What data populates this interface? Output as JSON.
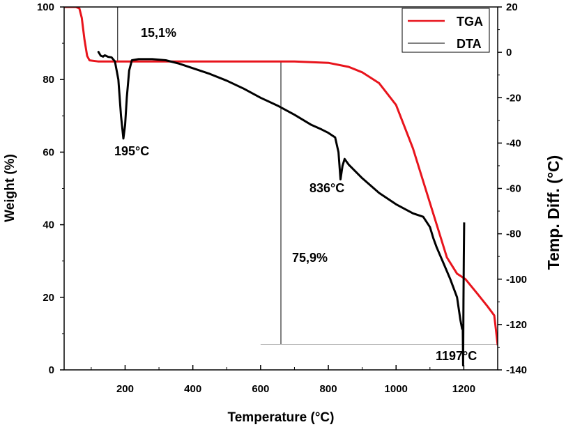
{
  "chart_data": {
    "type": "line",
    "xlabel": "Temperature (°C)",
    "ylabel_left": "Weight (%)",
    "ylabel_right": "Temp. Diff. (°C)",
    "xlim": [
      20,
      1300
    ],
    "ylim_left": [
      0,
      100
    ],
    "ylim_right": [
      -140,
      20
    ],
    "x_ticks": [
      200,
      400,
      600,
      800,
      1000,
      1200
    ],
    "y_left_ticks": [
      0,
      20,
      40,
      60,
      80,
      100
    ],
    "y_right_ticks": [
      -140,
      -120,
      -100,
      -80,
      -60,
      -40,
      -20,
      0,
      20
    ],
    "legend": {
      "position": "top-right",
      "entries": [
        "TGA",
        "DTA"
      ]
    },
    "series": [
      {
        "name": "TGA",
        "axis": "left",
        "color": "#e8141c",
        "points": [
          [
            20,
            100
          ],
          [
            55,
            100
          ],
          [
            65,
            99.6
          ],
          [
            72,
            97
          ],
          [
            80,
            91
          ],
          [
            88,
            86.5
          ],
          [
            95,
            85.3
          ],
          [
            120,
            85
          ],
          [
            300,
            85
          ],
          [
            500,
            85
          ],
          [
            700,
            85
          ],
          [
            800,
            84.6
          ],
          [
            860,
            83.5
          ],
          [
            900,
            82
          ],
          [
            950,
            79
          ],
          [
            1000,
            73
          ],
          [
            1050,
            61
          ],
          [
            1100,
            46
          ],
          [
            1150,
            31
          ],
          [
            1180,
            26.5
          ],
          [
            1205,
            25
          ],
          [
            1240,
            21
          ],
          [
            1270,
            17.5
          ],
          [
            1290,
            15
          ],
          [
            1296,
            10
          ],
          [
            1300,
            6.8
          ]
        ]
      },
      {
        "name": "DTA",
        "axis": "right",
        "color": "#000000",
        "points": [
          [
            120,
            0.5
          ],
          [
            128,
            -1.5
          ],
          [
            135,
            -1.9
          ],
          [
            140,
            -1.3
          ],
          [
            150,
            -2
          ],
          [
            160,
            -2.2
          ],
          [
            170,
            -4
          ],
          [
            180,
            -12
          ],
          [
            188,
            -28
          ],
          [
            195,
            -38
          ],
          [
            200,
            -32
          ],
          [
            205,
            -20
          ],
          [
            212,
            -8
          ],
          [
            220,
            -3.5
          ],
          [
            240,
            -3
          ],
          [
            280,
            -3
          ],
          [
            320,
            -3.5
          ],
          [
            360,
            -5
          ],
          [
            400,
            -7
          ],
          [
            450,
            -9.5
          ],
          [
            500,
            -12.5
          ],
          [
            550,
            -16
          ],
          [
            600,
            -20
          ],
          [
            650,
            -23.5
          ],
          [
            700,
            -27.5
          ],
          [
            750,
            -32
          ],
          [
            780,
            -34
          ],
          [
            800,
            -35.5
          ],
          [
            820,
            -37.5
          ],
          [
            830,
            -44
          ],
          [
            836,
            -56
          ],
          [
            842,
            -50
          ],
          [
            848,
            -47
          ],
          [
            860,
            -49.5
          ],
          [
            900,
            -55.5
          ],
          [
            950,
            -62
          ],
          [
            1000,
            -67
          ],
          [
            1050,
            -71
          ],
          [
            1080,
            -72.5
          ],
          [
            1100,
            -77
          ],
          [
            1110,
            -82
          ],
          [
            1120,
            -86
          ],
          [
            1140,
            -93
          ],
          [
            1160,
            -100
          ],
          [
            1180,
            -108
          ],
          [
            1190,
            -118
          ],
          [
            1195,
            -122
          ],
          [
            1197,
            -122
          ],
          [
            1198,
            -138
          ],
          [
            1199,
            -110
          ],
          [
            1200,
            -90
          ],
          [
            1201,
            -75
          ]
        ]
      }
    ],
    "annotations": [
      {
        "text": "15,1%",
        "x": 250,
        "y_left": 95
      },
      {
        "text": "195°C",
        "x": 195,
        "y_left": 62
      },
      {
        "text": "836°C",
        "x": 836,
        "y_left": 50
      },
      {
        "text": "75,9%",
        "x": 695,
        "y_left": 32
      },
      {
        "text": "1197°C",
        "x": 1197,
        "y_left": 2
      }
    ],
    "reference_lines": [
      {
        "type": "vertical",
        "x": 178,
        "y_from": 85,
        "y_to": 100
      },
      {
        "type": "vertical",
        "x": 660,
        "y_from": 7,
        "y_to": 85
      },
      {
        "type": "horizontal",
        "y_left": 7,
        "x_from": 600,
        "x_to": 1300
      }
    ]
  }
}
